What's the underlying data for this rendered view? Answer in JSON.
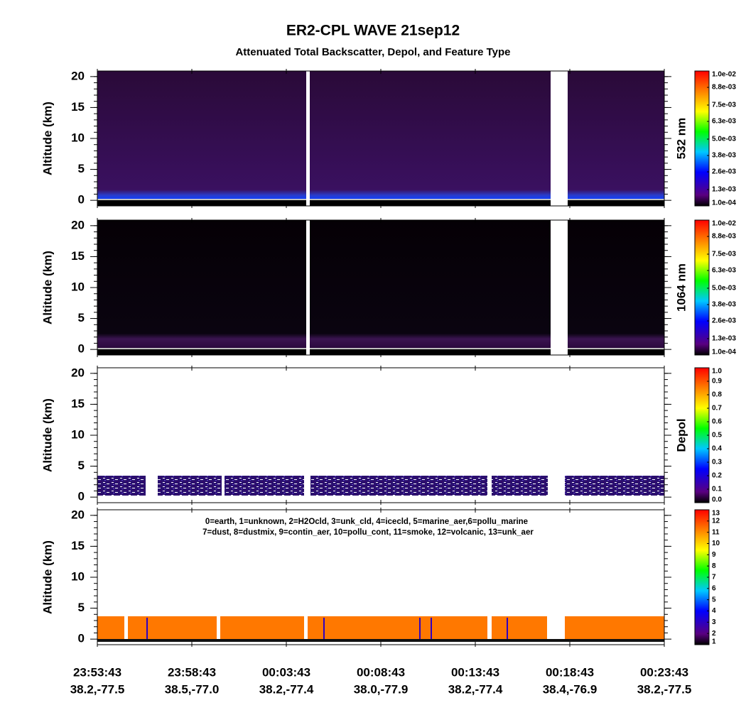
{
  "title": "ER2-CPL WAVE 21sep12",
  "subtitle": "Attenuated Total Backscatter, Depol, and Feature Type",
  "xtick_labels": [
    [
      "23:53:43",
      "38.2,-77.5"
    ],
    [
      "23:58:43",
      "38.5,-77.0"
    ],
    [
      "00:03:43",
      "38.2,-77.4"
    ],
    [
      "00:08:43",
      "38.0,-77.9"
    ],
    [
      "00:13:43",
      "38.2,-77.4"
    ],
    [
      "00:18:43",
      "38.4,-76.9"
    ],
    [
      "00:23:43",
      "38.2,-77.5"
    ]
  ],
  "chart_data": [
    {
      "type": "heatmap",
      "ylabel": "Altitude (km)",
      "ylim": [
        -0.9,
        20.9
      ],
      "yticks": [
        0,
        5,
        10,
        15,
        20
      ],
      "colorbar_label": "532 nm",
      "clim": [
        0.0001,
        0.01
      ],
      "cticks": [
        {
          "value": 0.0001,
          "label": "1.0e-04"
        },
        {
          "value": 0.0013,
          "label": "1.3e-03"
        },
        {
          "value": 0.0026,
          "label": "2.6e-03"
        },
        {
          "value": 0.0038,
          "label": "3.8e-03"
        },
        {
          "value": 0.005,
          "label": "5.0e-03"
        },
        {
          "value": 0.0063,
          "label": "6.3e-03"
        },
        {
          "value": 0.0075,
          "label": "7.5e-03"
        },
        {
          "value": 0.0088,
          "label": "8.8e-03"
        },
        {
          "value": 0.01,
          "label": "1.0e-02"
        }
      ]
    },
    {
      "type": "heatmap",
      "ylabel": "Altitude (km)",
      "ylim": [
        -0.9,
        20.9
      ],
      "yticks": [
        0,
        5,
        10,
        15,
        20
      ],
      "colorbar_label": "1064 nm",
      "clim": [
        0.0001,
        0.01
      ],
      "cticks": [
        {
          "value": 0.0001,
          "label": "1.0e-04"
        },
        {
          "value": 0.0013,
          "label": "1.3e-03"
        },
        {
          "value": 0.0026,
          "label": "2.6e-03"
        },
        {
          "value": 0.0038,
          "label": "3.8e-03"
        },
        {
          "value": 0.005,
          "label": "5.0e-03"
        },
        {
          "value": 0.0063,
          "label": "6.3e-03"
        },
        {
          "value": 0.0075,
          "label": "7.5e-03"
        },
        {
          "value": 0.0088,
          "label": "8.8e-03"
        },
        {
          "value": 0.01,
          "label": "1.0e-02"
        }
      ]
    },
    {
      "type": "heatmap",
      "ylabel": "Altitude (km)",
      "ylim": [
        -0.9,
        20.9
      ],
      "yticks": [
        0,
        5,
        10,
        15,
        20
      ],
      "colorbar_label": "Depol",
      "clim": [
        0,
        1
      ],
      "cticks": [
        {
          "value": 0,
          "label": "0.0"
        },
        {
          "value": 0.1,
          "label": "0.1"
        },
        {
          "value": 0.2,
          "label": "0.2"
        },
        {
          "value": 0.3,
          "label": "0.3"
        },
        {
          "value": 0.4,
          "label": "0.4"
        },
        {
          "value": 0.5,
          "label": "0.5"
        },
        {
          "value": 0.6,
          "label": "0.6"
        },
        {
          "value": 0.7,
          "label": "0.7"
        },
        {
          "value": 0.8,
          "label": "0.8"
        },
        {
          "value": 0.9,
          "label": "0.9"
        },
        {
          "value": 1,
          "label": "1.0"
        }
      ]
    },
    {
      "type": "heatmap",
      "ylabel": "Altitude (km)",
      "ylim": [
        -0.9,
        20.9
      ],
      "yticks": [
        0,
        5,
        10,
        15,
        20
      ],
      "clim": [
        1,
        13
      ],
      "cticks": [
        1,
        2,
        3,
        4,
        5,
        6,
        7,
        8,
        9,
        10,
        11,
        12,
        13
      ],
      "legend_text": [
        "0=earth, 1=unknown, 2=H2Ocld, 3=unk_cld, 4=icecld, 5=marine_aer,6=pollu_marine",
        "7=dust, 8=dustmix, 9=contin_aer, 10=pollu_cont, 11=smoke, 12=volcanic, 13=unk_aer"
      ]
    }
  ]
}
